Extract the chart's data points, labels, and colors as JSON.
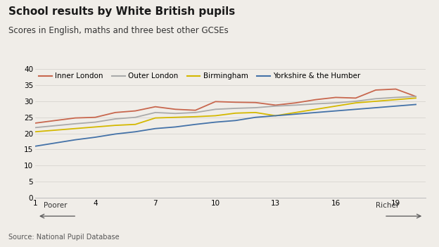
{
  "title": "School results by White British pupils",
  "subtitle": "Scores in English, maths and three best other GCSEs",
  "source": "Source: National Pupil Database",
  "xlabel_poorer": "Poorer",
  "xlabel_richer": "Richer",
  "x": [
    1,
    2,
    3,
    4,
    5,
    6,
    7,
    8,
    9,
    10,
    11,
    12,
    13,
    14,
    15,
    16,
    17,
    18,
    19,
    20
  ],
  "inner_london": [
    23.2,
    24.0,
    24.8,
    25.0,
    26.5,
    27.0,
    28.3,
    27.5,
    27.2,
    29.9,
    29.7,
    29.6,
    28.8,
    29.5,
    30.5,
    31.2,
    31.0,
    33.5,
    33.8,
    31.5
  ],
  "outer_london": [
    21.8,
    22.4,
    23.0,
    23.5,
    24.5,
    25.0,
    26.5,
    26.2,
    26.5,
    27.5,
    27.8,
    28.0,
    28.5,
    28.8,
    29.2,
    29.5,
    30.0,
    30.8,
    31.2,
    31.5
  ],
  "birmingham": [
    20.5,
    21.0,
    21.5,
    22.0,
    22.5,
    22.8,
    24.8,
    25.0,
    25.2,
    25.5,
    26.3,
    26.5,
    25.5,
    26.5,
    27.5,
    28.5,
    29.5,
    30.0,
    30.5,
    31.0
  ],
  "yorkshire": [
    16.0,
    17.0,
    18.0,
    18.8,
    19.8,
    20.5,
    21.5,
    22.0,
    22.8,
    23.5,
    24.0,
    25.0,
    25.5,
    26.0,
    26.5,
    27.0,
    27.5,
    28.0,
    28.5,
    29.0
  ],
  "inner_london_color": "#c8674e",
  "outer_london_color": "#aaaaaa",
  "birmingham_color": "#d4b800",
  "yorkshire_color": "#4472a8",
  "bg_color": "#f0ede8",
  "plot_bg_color": "#f0ede8",
  "grid_color": "#d8d5d0",
  "ylim": [
    0,
    40
  ],
  "yticks": [
    0,
    5,
    10,
    15,
    20,
    25,
    30,
    35,
    40
  ],
  "xticks": [
    1,
    4,
    7,
    10,
    13,
    16,
    19
  ],
  "legend_labels": [
    "Inner London",
    "Outer London",
    "Birmingham",
    "Yorkshire & the Humber"
  ],
  "title_fontsize": 11,
  "subtitle_fontsize": 8.5,
  "source_fontsize": 7,
  "tick_fontsize": 7.5,
  "legend_fontsize": 7.5
}
